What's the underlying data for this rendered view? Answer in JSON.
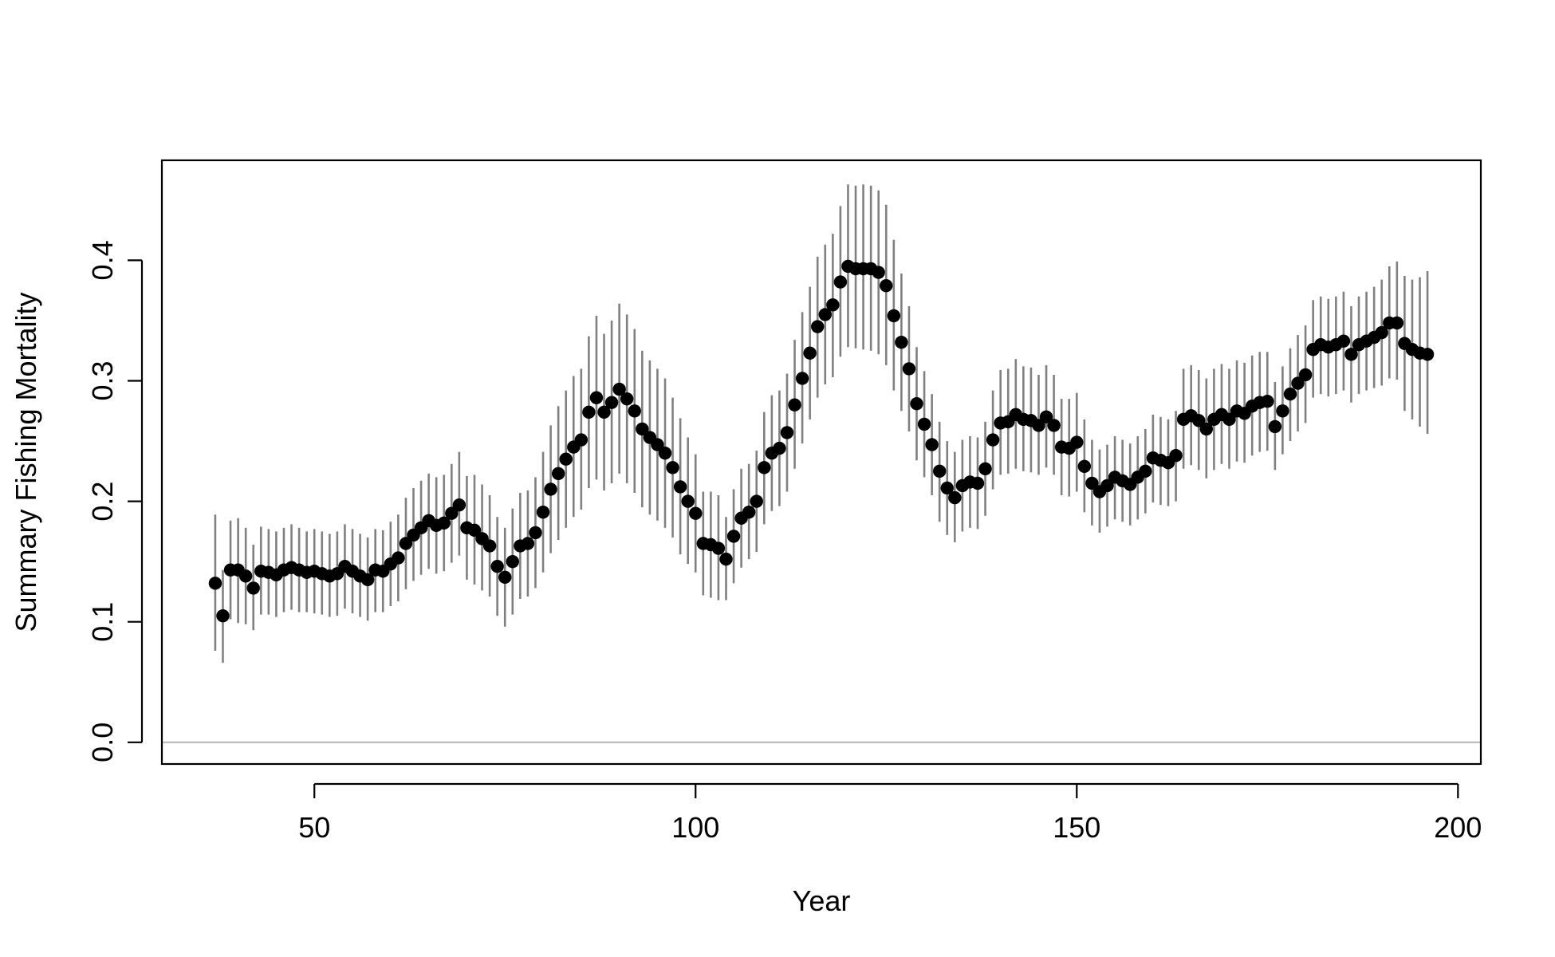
{
  "colors": {
    "points": "#000000",
    "error_bars": "#808080",
    "zero_line": "#BEBEBE",
    "axes": "#000000",
    "background": "#ffffff"
  },
  "chart_data": {
    "type": "scatter",
    "title": "",
    "xlabel": "Year",
    "ylabel": "Summary Fishing Mortality",
    "xlim": [
      30,
      203
    ],
    "ylim": [
      -0.018,
      0.483
    ],
    "x_ticks": [
      50,
      100,
      150,
      200
    ],
    "x_tick_labels": [
      "50",
      "100",
      "150",
      "200"
    ],
    "y_ticks": [
      0.0,
      0.1,
      0.2,
      0.3,
      0.4
    ],
    "y_tick_labels": [
      "0.0",
      "0.1",
      "0.2",
      "0.3",
      "0.4"
    ],
    "reference_line": 0,
    "grid": false,
    "legend": "none",
    "series": [
      {
        "x": [
          37,
          38,
          39,
          40,
          41,
          42,
          43,
          44,
          45,
          46,
          47,
          48,
          49,
          50,
          51,
          52,
          53,
          54,
          55,
          56,
          57,
          58,
          59,
          60,
          61,
          62,
          63,
          64,
          65,
          66,
          67,
          68,
          69,
          70,
          71,
          72,
          73,
          74,
          75,
          76,
          77,
          78,
          79,
          80,
          81,
          82,
          83,
          84,
          85,
          86,
          87,
          88,
          89,
          90,
          91,
          92,
          93,
          94,
          95,
          96,
          97,
          98,
          99,
          100,
          101,
          102,
          103,
          104,
          105,
          106,
          107,
          108,
          109,
          110,
          111,
          112,
          113,
          114,
          115,
          116,
          117,
          118,
          119,
          120,
          121,
          122,
          123,
          124,
          125,
          126,
          127,
          128,
          129,
          130,
          131,
          132,
          133,
          134,
          135,
          136,
          137,
          138,
          139,
          140,
          141,
          142,
          143,
          144,
          145,
          146,
          147,
          148,
          149,
          150,
          151,
          152,
          153,
          154,
          155,
          156,
          157,
          158,
          159,
          160,
          161,
          162,
          163,
          164,
          165,
          166,
          167,
          168,
          169,
          170,
          171,
          172,
          173,
          174,
          175,
          176,
          177,
          178,
          179,
          180,
          181,
          182,
          183,
          184,
          185,
          186,
          187,
          188,
          189,
          190,
          191,
          192,
          193,
          194,
          195,
          196
        ],
        "y": [
          0.132,
          0.105,
          0.143,
          0.143,
          0.138,
          0.128,
          0.142,
          0.141,
          0.139,
          0.143,
          0.145,
          0.143,
          0.141,
          0.142,
          0.14,
          0.138,
          0.14,
          0.146,
          0.142,
          0.138,
          0.135,
          0.143,
          0.142,
          0.148,
          0.153,
          0.165,
          0.172,
          0.178,
          0.184,
          0.18,
          0.182,
          0.19,
          0.197,
          0.178,
          0.176,
          0.169,
          0.163,
          0.146,
          0.137,
          0.15,
          0.163,
          0.165,
          0.174,
          0.191,
          0.21,
          0.223,
          0.235,
          0.245,
          0.251,
          0.274,
          0.286,
          0.274,
          0.282,
          0.293,
          0.285,
          0.275,
          0.26,
          0.253,
          0.247,
          0.24,
          0.228,
          0.212,
          0.2,
          0.19,
          0.165,
          0.164,
          0.161,
          0.152,
          0.171,
          0.186,
          0.191,
          0.2,
          0.228,
          0.24,
          0.244,
          0.257,
          0.28,
          0.302,
          0.323,
          0.345,
          0.355,
          0.363,
          0.382,
          0.395,
          0.393,
          0.393,
          0.393,
          0.39,
          0.379,
          0.354,
          0.332,
          0.31,
          0.281,
          0.264,
          0.247,
          0.225,
          0.211,
          0.203,
          0.213,
          0.216,
          0.215,
          0.227,
          0.251,
          0.265,
          0.266,
          0.272,
          0.268,
          0.267,
          0.263,
          0.27,
          0.263,
          0.245,
          0.244,
          0.249,
          0.229,
          0.215,
          0.208,
          0.213,
          0.22,
          0.217,
          0.214,
          0.22,
          0.225,
          0.236,
          0.234,
          0.232,
          0.238,
          0.268,
          0.271,
          0.267,
          0.26,
          0.268,
          0.272,
          0.268,
          0.275,
          0.273,
          0.279,
          0.282,
          0.283,
          0.262,
          0.275,
          0.289,
          0.298,
          0.305,
          0.326,
          0.33,
          0.328,
          0.33,
          0.333,
          0.322,
          0.33,
          0.333,
          0.336,
          0.34,
          0.348,
          0.348,
          0.331,
          0.326,
          0.323,
          0.322
        ],
        "lower": [
          0.076,
          0.066,
          0.102,
          0.099,
          0.098,
          0.093,
          0.106,
          0.106,
          0.104,
          0.108,
          0.11,
          0.108,
          0.108,
          0.107,
          0.106,
          0.104,
          0.105,
          0.111,
          0.107,
          0.104,
          0.101,
          0.108,
          0.108,
          0.113,
          0.117,
          0.127,
          0.134,
          0.139,
          0.144,
          0.14,
          0.142,
          0.149,
          0.155,
          0.135,
          0.131,
          0.126,
          0.121,
          0.105,
          0.096,
          0.106,
          0.119,
          0.121,
          0.128,
          0.141,
          0.157,
          0.168,
          0.178,
          0.187,
          0.193,
          0.211,
          0.218,
          0.209,
          0.215,
          0.223,
          0.215,
          0.207,
          0.195,
          0.189,
          0.184,
          0.178,
          0.17,
          0.156,
          0.148,
          0.141,
          0.122,
          0.12,
          0.118,
          0.118,
          0.132,
          0.145,
          0.152,
          0.158,
          0.181,
          0.192,
          0.196,
          0.208,
          0.227,
          0.248,
          0.268,
          0.286,
          0.297,
          0.303,
          0.32,
          0.328,
          0.327,
          0.326,
          0.325,
          0.322,
          0.313,
          0.292,
          0.275,
          0.258,
          0.234,
          0.22,
          0.205,
          0.183,
          0.172,
          0.166,
          0.175,
          0.178,
          0.177,
          0.188,
          0.21,
          0.222,
          0.223,
          0.227,
          0.225,
          0.224,
          0.222,
          0.228,
          0.222,
          0.205,
          0.204,
          0.208,
          0.191,
          0.18,
          0.174,
          0.179,
          0.185,
          0.183,
          0.18,
          0.185,
          0.19,
          0.199,
          0.197,
          0.196,
          0.2,
          0.227,
          0.23,
          0.226,
          0.219,
          0.226,
          0.231,
          0.227,
          0.233,
          0.232,
          0.238,
          0.241,
          0.242,
          0.226,
          0.239,
          0.25,
          0.258,
          0.265,
          0.286,
          0.289,
          0.287,
          0.289,
          0.292,
          0.282,
          0.289,
          0.292,
          0.294,
          0.296,
          0.302,
          0.301,
          0.275,
          0.268,
          0.262,
          0.256
        ],
        "upper": [
          0.189,
          0.143,
          0.184,
          0.186,
          0.178,
          0.164,
          0.179,
          0.177,
          0.175,
          0.178,
          0.181,
          0.178,
          0.175,
          0.177,
          0.175,
          0.173,
          0.175,
          0.181,
          0.177,
          0.173,
          0.17,
          0.177,
          0.176,
          0.183,
          0.189,
          0.203,
          0.211,
          0.217,
          0.223,
          0.22,
          0.222,
          0.231,
          0.241,
          0.221,
          0.222,
          0.214,
          0.205,
          0.187,
          0.178,
          0.194,
          0.207,
          0.209,
          0.22,
          0.241,
          0.263,
          0.279,
          0.292,
          0.304,
          0.31,
          0.337,
          0.354,
          0.339,
          0.35,
          0.364,
          0.355,
          0.343,
          0.325,
          0.317,
          0.31,
          0.302,
          0.286,
          0.269,
          0.253,
          0.239,
          0.208,
          0.208,
          0.205,
          0.187,
          0.21,
          0.227,
          0.231,
          0.242,
          0.274,
          0.288,
          0.292,
          0.306,
          0.334,
          0.357,
          0.378,
          0.403,
          0.413,
          0.422,
          0.445,
          0.463,
          0.462,
          0.463,
          0.462,
          0.458,
          0.446,
          0.417,
          0.389,
          0.362,
          0.328,
          0.308,
          0.289,
          0.266,
          0.25,
          0.241,
          0.251,
          0.254,
          0.253,
          0.266,
          0.292,
          0.309,
          0.31,
          0.318,
          0.312,
          0.311,
          0.305,
          0.313,
          0.305,
          0.285,
          0.285,
          0.29,
          0.268,
          0.251,
          0.243,
          0.247,
          0.254,
          0.251,
          0.248,
          0.254,
          0.26,
          0.272,
          0.27,
          0.268,
          0.275,
          0.31,
          0.313,
          0.309,
          0.302,
          0.31,
          0.314,
          0.31,
          0.317,
          0.315,
          0.321,
          0.324,
          0.324,
          0.299,
          0.312,
          0.327,
          0.338,
          0.346,
          0.367,
          0.37,
          0.368,
          0.37,
          0.374,
          0.362,
          0.37,
          0.374,
          0.378,
          0.384,
          0.395,
          0.399,
          0.387,
          0.384,
          0.386,
          0.391
        ]
      }
    ]
  }
}
